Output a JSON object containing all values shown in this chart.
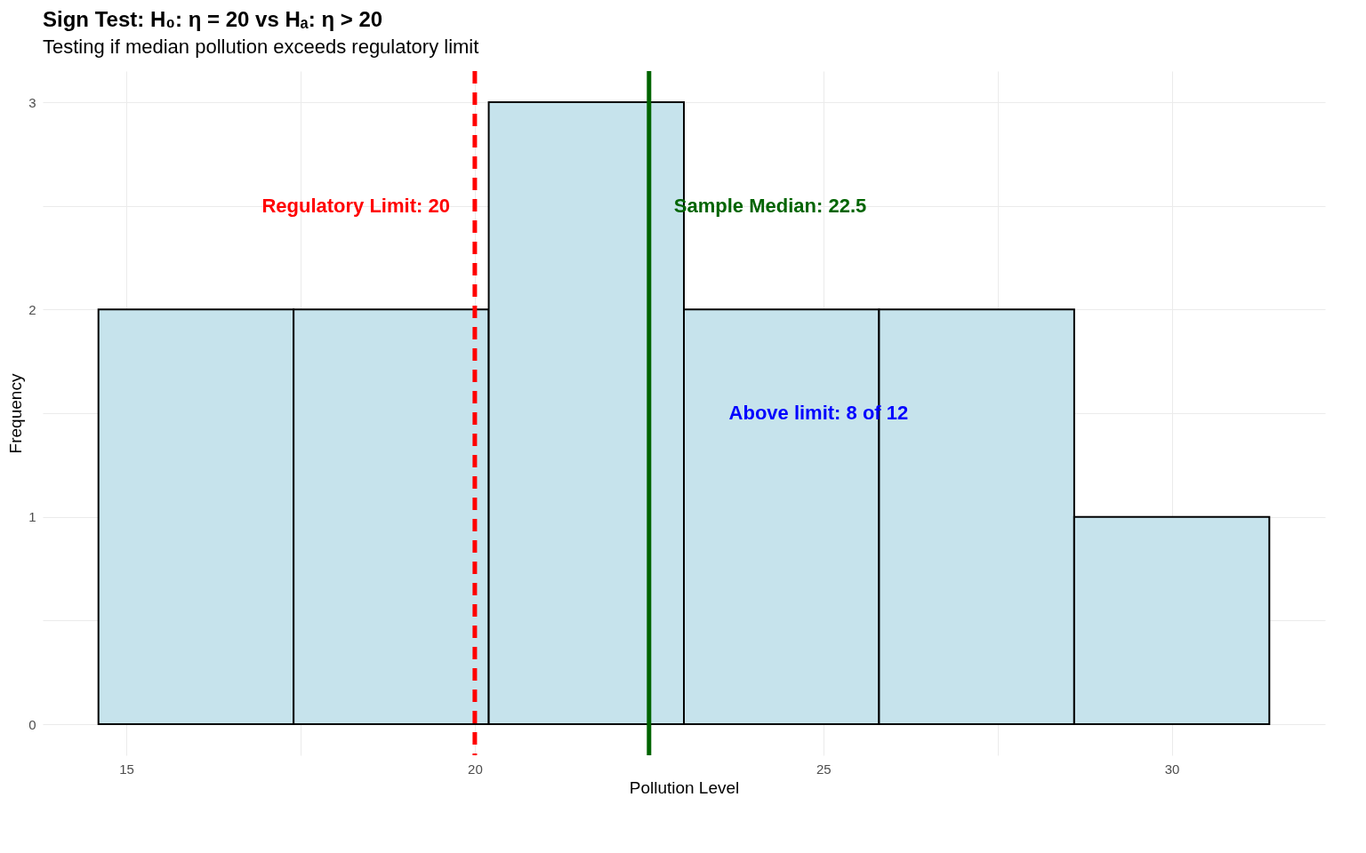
{
  "chart_data": {
    "type": "histogram",
    "title": "Sign Test: H₀: η = 20 vs Hₐ: η > 20",
    "subtitle": "Testing if median pollution exceeds regulatory limit",
    "xlabel": "Pollution Level",
    "ylabel": "Frequency",
    "bins": [
      14.6,
      17.4,
      20.2,
      23.0,
      25.8,
      28.6,
      31.4
    ],
    "values": [
      2,
      2,
      3,
      2,
      2,
      1
    ],
    "color": "#c6e3ec",
    "xlim": [
      13.8,
      32.2
    ],
    "ylim": [
      -0.15,
      3.15
    ],
    "xticks": [
      15,
      {
        "value": 17.5,
        "label": null
      },
      20,
      {
        "value": 22.5,
        "label": null
      },
      25,
      {
        "value": 27.5,
        "label": null
      },
      30
    ],
    "yticks": [
      0,
      {
        "value": 0.5,
        "label": null
      },
      1,
      {
        "value": 1.5,
        "label": null
      },
      2,
      {
        "value": 2.5,
        "label": null
      },
      3
    ],
    "grid": true,
    "ref_lines": [
      {
        "axis": "x",
        "value": 20,
        "label": "Regulatory Limit: 20",
        "color": "#ff0000",
        "line_style": "dashed"
      },
      {
        "axis": "x",
        "value": 22.5,
        "label": "Sample Median: 22.5",
        "color": "#006400",
        "line_style": "solid"
      }
    ],
    "annotations": [
      "Above limit: 8 of 12"
    ]
  }
}
